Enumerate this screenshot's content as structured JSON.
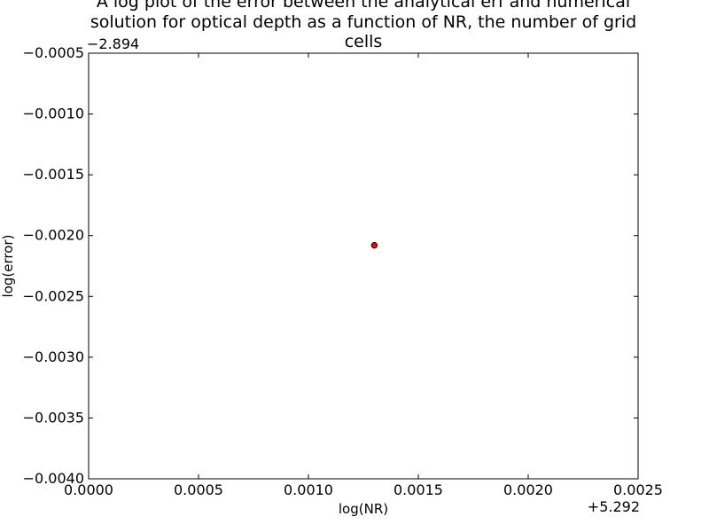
{
  "chart_data": {
    "type": "scatter",
    "title_lines": [
      "A log plot of the error between the analytical erf and numerical",
      "solution for optical depth as a function of NR, the number of grid",
      "cells"
    ],
    "xlabel": "log(NR)",
    "ylabel": "log(error)",
    "x_offset_label": "+5.292",
    "y_offset_label": "−2.894",
    "xlim": [
      0.0,
      0.0025
    ],
    "ylim": [
      -0.004,
      -0.0005
    ],
    "x_ticks": [
      0.0,
      0.0005,
      0.001,
      0.0015,
      0.002,
      0.0025
    ],
    "x_tick_labels": [
      "0.0000",
      "0.0005",
      "0.0010",
      "0.0015",
      "0.0020",
      "0.0025"
    ],
    "y_ticks": [
      -0.0005,
      -0.001,
      -0.0015,
      -0.002,
      -0.0025,
      -0.003,
      -0.0035,
      -0.004
    ],
    "y_tick_labels": [
      "−0.0005",
      "−0.0010",
      "−0.0015",
      "−0.0020",
      "−0.0025",
      "−0.0030",
      "−0.0035",
      "−0.0040"
    ],
    "grid": false,
    "points": [
      {
        "x": 0.0013,
        "y": -0.00208
      }
    ],
    "marker_color": "#ff0000",
    "marker_edge": "#000000"
  }
}
